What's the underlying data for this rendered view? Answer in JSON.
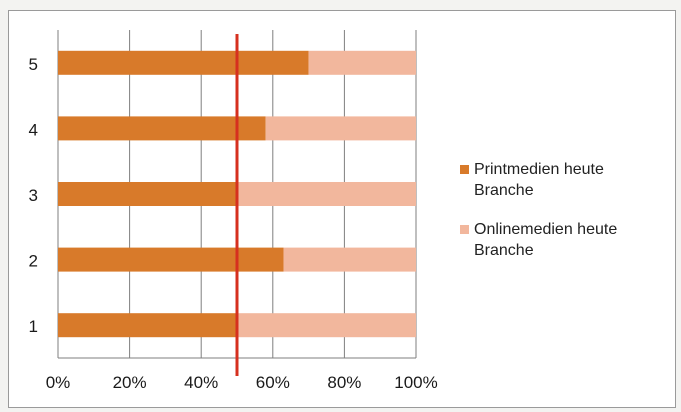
{
  "chart_data": {
    "type": "bar",
    "orientation": "horizontal",
    "stacking": "percent",
    "categories": [
      "1",
      "2",
      "3",
      "4",
      "5"
    ],
    "series": [
      {
        "name": "Printmedien heute Branche",
        "color": "#d87a2a",
        "values": [
          50,
          63,
          50,
          58,
          70
        ]
      },
      {
        "name": "Onlinemedien heute Branche",
        "color": "#f2b79d",
        "values": [
          50,
          37,
          50,
          42,
          30
        ]
      }
    ],
    "xticks": [
      "0%",
      "20%",
      "40%",
      "60%",
      "80%",
      "100%"
    ],
    "xlim": [
      0,
      100
    ],
    "reference_line": {
      "value": 50,
      "color": "#d6301f"
    },
    "grid": true,
    "legend_position": "right",
    "title": "",
    "xlabel": "",
    "ylabel": ""
  }
}
